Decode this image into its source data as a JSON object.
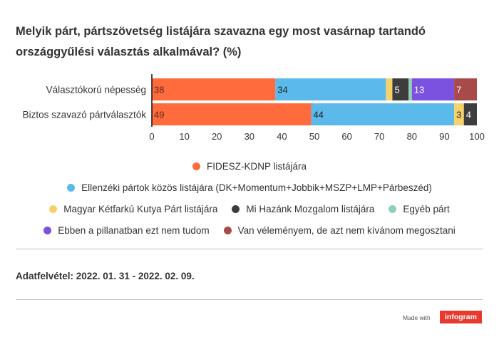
{
  "title": "Melyik párt, pártszövetség listájára szavazna egy most vasárnap tartandó országgyűlési választás alkalmával? (%)",
  "chart_data": {
    "type": "bar",
    "orientation": "horizontal",
    "stacked": true,
    "categories": [
      "Választókorú népesség",
      "Biztos szavazó pártválasztók"
    ],
    "series": [
      {
        "name": "FIDESZ-KDNP listájára",
        "color": "#ff6b3d",
        "values": [
          38,
          49
        ],
        "labels": [
          "38",
          "49"
        ]
      },
      {
        "name": "Ellenzéki pártok közös  listájára (DK+Momentum+Jobbik+MSZP+LMP+Párbeszéd)",
        "color": "#5bbae9",
        "values": [
          34,
          44
        ],
        "labels": [
          "34",
          "44"
        ]
      },
      {
        "name": "Magyar Kétfarkú Kutya Párt listájára",
        "color": "#f5d16b",
        "values": [
          2,
          3
        ],
        "labels": [
          "",
          "3"
        ]
      },
      {
        "name": "Mi Hazánk Mozgalom listájára",
        "color": "#3d3d3d",
        "values": [
          5,
          4
        ],
        "labels": [
          "5",
          "4"
        ]
      },
      {
        "name": "Egyéb párt",
        "color": "#8fd1b4",
        "values": [
          1,
          0
        ],
        "labels": [
          "",
          ""
        ]
      },
      {
        "name": "Ebben a pillanatban ezt nem tudom",
        "color": "#7b52e0",
        "values": [
          13,
          0
        ],
        "labels": [
          "13",
          ""
        ]
      },
      {
        "name": "Van véleményem, de azt nem kívánom megosztani",
        "color": "#a84a4a",
        "values": [
          7,
          0
        ],
        "labels": [
          "7",
          ""
        ]
      }
    ],
    "xlim": [
      0,
      100
    ],
    "xticks": [
      "0",
      "10",
      "20",
      "30",
      "40",
      "50",
      "60",
      "70",
      "80",
      "90",
      "100"
    ],
    "grid": false,
    "legend": "bottom"
  },
  "legend_rows": [
    [
      0
    ],
    [
      1
    ],
    [
      2,
      3,
      4
    ],
    [
      5,
      6
    ]
  ],
  "note": "Adatfelvétel:  2022. 01. 31 - 2022. 02. 09.",
  "footer": {
    "made_with": "Made with",
    "brand": "infogram"
  }
}
